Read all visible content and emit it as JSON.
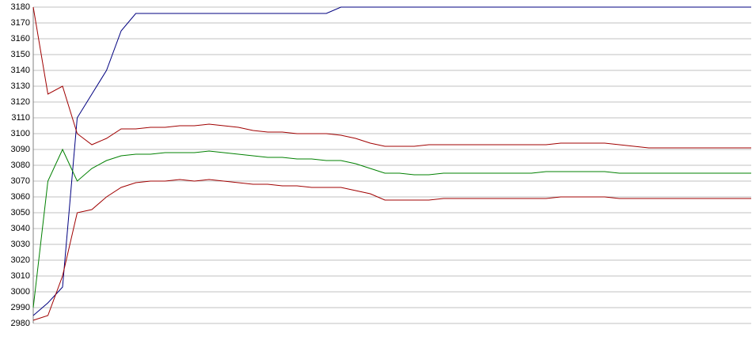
{
  "chart_data": {
    "type": "line",
    "categories": [
      null,
      null,
      null,
      null,
      null,
      null,
      null,
      null,
      null,
      null,
      null,
      null,
      null,
      null,
      null,
      null,
      null,
      null,
      null,
      null,
      null,
      null,
      null,
      null,
      null,
      null,
      null,
      null,
      null,
      null,
      null,
      null,
      null,
      null,
      null,
      null,
      null,
      null,
      null,
      null,
      null,
      null,
      null,
      null,
      null,
      null,
      null,
      null,
      null,
      null
    ],
    "series": [
      {
        "color": "#000080",
        "values": [
          2985,
          2993,
          3003,
          3110,
          3125,
          3140,
          3165,
          3176,
          3176,
          3176,
          3176,
          3176,
          3176,
          3176,
          3176,
          3176,
          3176,
          3176,
          3176,
          3176,
          3176,
          3180,
          3180,
          3180,
          3180,
          3180,
          3180,
          3180,
          3180,
          3180,
          3180,
          3180,
          3180,
          3180,
          3180,
          3180,
          3180,
          3180,
          3180,
          3180,
          3180,
          3180,
          3180,
          3180,
          3180,
          3180,
          3180,
          3180,
          3180,
          3180
        ]
      },
      {
        "color": "#a00000",
        "values": [
          3180,
          3125,
          3130,
          3100,
          3093,
          3097,
          3103,
          3103,
          3104,
          3104,
          3105,
          3105,
          3106,
          3105,
          3104,
          3102,
          3101,
          3101,
          3100,
          3100,
          3100,
          3099,
          3097,
          3094,
          3092,
          3092,
          3092,
          3093,
          3093,
          3093,
          3093,
          3093,
          3093,
          3093,
          3093,
          3093,
          3094,
          3094,
          3094,
          3094,
          3093,
          3092,
          3091,
          3091,
          3091,
          3091,
          3091,
          3091,
          3091,
          3091
        ]
      },
      {
        "color": "#008000",
        "values": [
          2990,
          3070,
          3090,
          3070,
          3078,
          3083,
          3086,
          3087,
          3087,
          3088,
          3088,
          3088,
          3089,
          3088,
          3087,
          3086,
          3085,
          3085,
          3084,
          3084,
          3083,
          3083,
          3081,
          3078,
          3075,
          3075,
          3074,
          3074,
          3075,
          3075,
          3075,
          3075,
          3075,
          3075,
          3075,
          3076,
          3076,
          3076,
          3076,
          3076,
          3075,
          3075,
          3075,
          3075,
          3075,
          3075,
          3075,
          3075,
          3075,
          3075
        ]
      },
      {
        "color": "#a00000",
        "values": [
          2982,
          2985,
          3010,
          3050,
          3052,
          3060,
          3066,
          3069,
          3070,
          3070,
          3071,
          3070,
          3071,
          3070,
          3069,
          3068,
          3068,
          3067,
          3067,
          3066,
          3066,
          3066,
          3064,
          3062,
          3058,
          3058,
          3058,
          3058,
          3059,
          3059,
          3059,
          3059,
          3059,
          3059,
          3059,
          3059,
          3060,
          3060,
          3060,
          3060,
          3059,
          3059,
          3059,
          3059,
          3059,
          3059,
          3059,
          3059,
          3059,
          3059
        ]
      }
    ],
    "ylim": [
      2980,
      3180
    ],
    "yticks": [
      2980,
      2990,
      3000,
      3010,
      3020,
      3030,
      3040,
      3050,
      3060,
      3070,
      3080,
      3090,
      3100,
      3110,
      3120,
      3130,
      3140,
      3150,
      3160,
      3170,
      3180
    ],
    "grid": true
  }
}
